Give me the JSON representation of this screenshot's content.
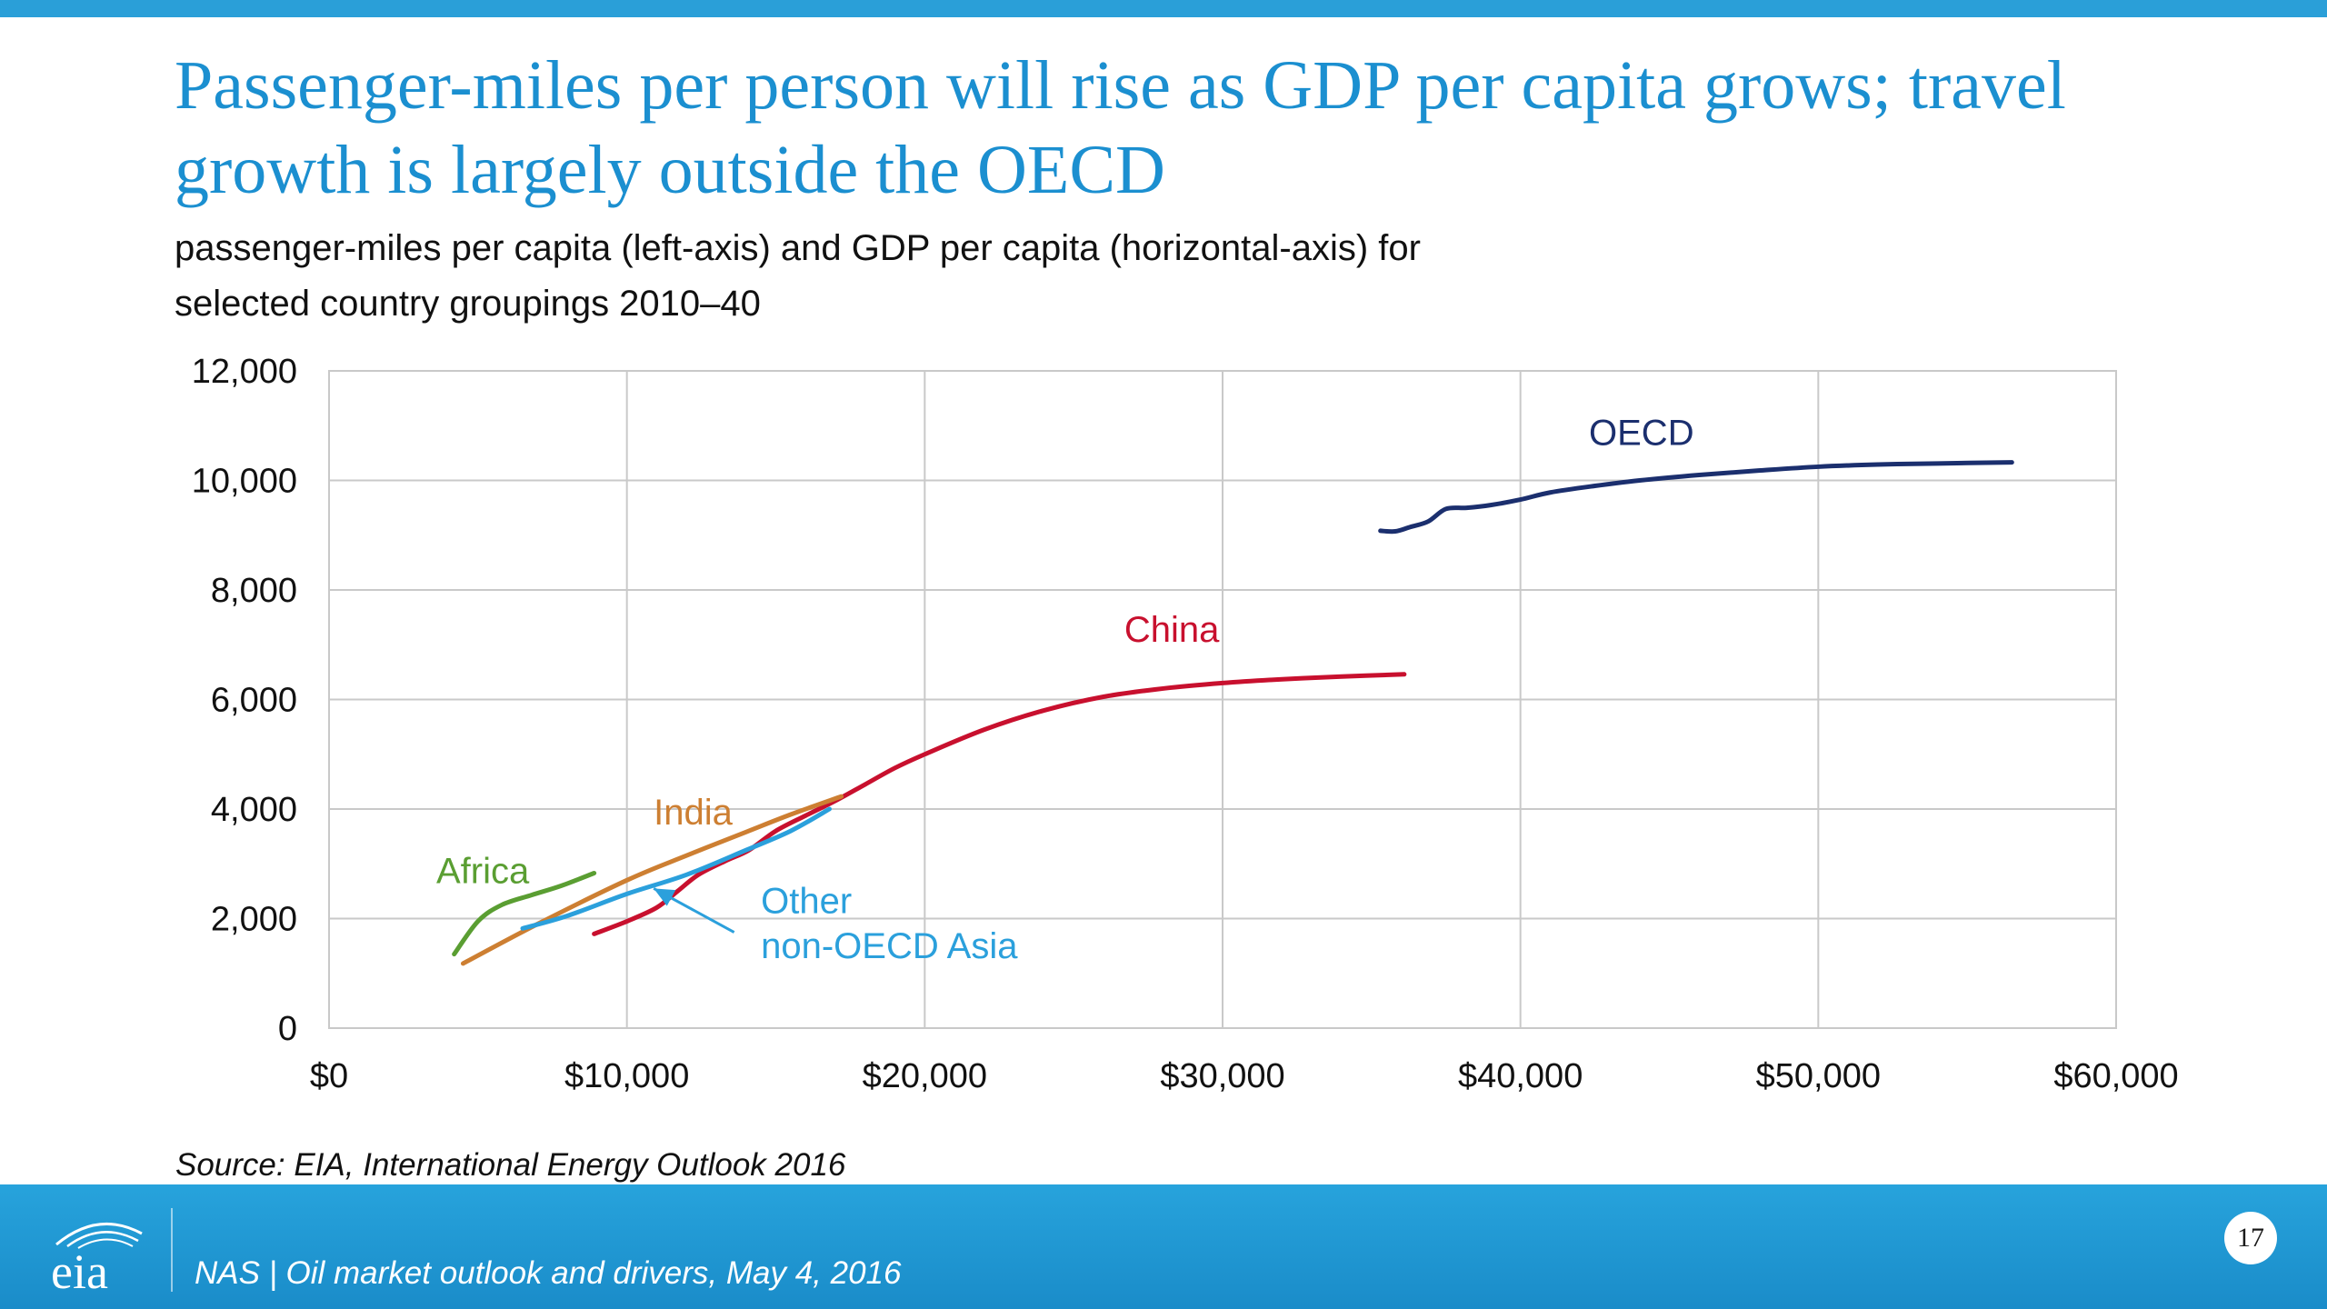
{
  "slide": {
    "title": "Passenger-miles per person will rise as GDP per capita grows; travel growth is largely outside the OECD",
    "subtitle_line1": "passenger-miles per capita (left-axis) and GDP per capita (horizontal-axis) for",
    "subtitle_line2": "selected country groupings 2010–40",
    "source": "Source:  EIA, International Energy Outlook 2016",
    "footer_text": "NAS | Oil market outlook and drivers, May 4, 2016",
    "page_number": "17",
    "logo_text": "eia"
  },
  "colors": {
    "accent": "#2a9fd8",
    "title": "#1b8fd0",
    "oecd": "#1b2f6e",
    "china": "#c8102e",
    "india": "#cd7f32",
    "africa": "#5a9e32",
    "other_asia": "#2ba0dc",
    "grid": "#c9c9c9"
  },
  "chart_data": {
    "type": "line",
    "title": "",
    "xlabel": "",
    "ylabel": "",
    "xlim": [
      0,
      60000
    ],
    "ylim": [
      0,
      12000
    ],
    "x_ticks": [
      0,
      10000,
      20000,
      30000,
      40000,
      50000,
      60000
    ],
    "x_tick_labels": [
      "$0",
      "$10,000",
      "$20,000",
      "$30,000",
      "$40,000",
      "$50,000",
      "$60,000"
    ],
    "y_ticks": [
      0,
      2000,
      4000,
      6000,
      8000,
      10000,
      12000
    ],
    "y_tick_labels": [
      "0",
      "2,000",
      "4,000",
      "6,000",
      "8,000",
      "10,000",
      "12,000"
    ],
    "grid": true,
    "series": [
      {
        "name": "OECD",
        "color": "#1b2f6e",
        "points": [
          [
            35300,
            9080
          ],
          [
            35800,
            9070
          ],
          [
            36300,
            9150
          ],
          [
            36900,
            9250
          ],
          [
            37500,
            9480
          ],
          [
            38200,
            9500
          ],
          [
            39000,
            9550
          ],
          [
            40000,
            9650
          ],
          [
            41000,
            9780
          ],
          [
            42500,
            9900
          ],
          [
            44000,
            10000
          ],
          [
            46000,
            10100
          ],
          [
            48000,
            10180
          ],
          [
            50000,
            10250
          ],
          [
            52000,
            10290
          ],
          [
            54000,
            10310
          ],
          [
            56500,
            10330
          ]
        ]
      },
      {
        "name": "China",
        "color": "#c8102e",
        "points": [
          [
            8900,
            1720
          ],
          [
            10000,
            1950
          ],
          [
            11000,
            2200
          ],
          [
            11700,
            2500
          ],
          [
            12400,
            2800
          ],
          [
            13300,
            3050
          ],
          [
            14100,
            3250
          ],
          [
            15000,
            3600
          ],
          [
            16000,
            3880
          ],
          [
            17000,
            4150
          ],
          [
            18000,
            4450
          ],
          [
            19000,
            4750
          ],
          [
            20000,
            5000
          ],
          [
            22000,
            5450
          ],
          [
            24000,
            5800
          ],
          [
            26000,
            6050
          ],
          [
            28000,
            6200
          ],
          [
            30000,
            6300
          ],
          [
            32000,
            6370
          ],
          [
            34000,
            6420
          ],
          [
            36100,
            6460
          ]
        ]
      },
      {
        "name": "India",
        "color": "#cd7f32",
        "points": [
          [
            4500,
            1180
          ],
          [
            7000,
            1900
          ],
          [
            10000,
            2700
          ],
          [
            12000,
            3150
          ],
          [
            14000,
            3580
          ],
          [
            15500,
            3900
          ],
          [
            17200,
            4230
          ]
        ]
      },
      {
        "name": "Africa",
        "color": "#5a9e32",
        "points": [
          [
            4200,
            1350
          ],
          [
            5000,
            1950
          ],
          [
            5800,
            2250
          ],
          [
            6800,
            2430
          ],
          [
            7800,
            2600
          ],
          [
            8900,
            2830
          ]
        ]
      },
      {
        "name": "Other non-OECD Asia",
        "color": "#2ba0dc",
        "points": [
          [
            6500,
            1820
          ],
          [
            8000,
            2050
          ],
          [
            10000,
            2450
          ],
          [
            12000,
            2800
          ],
          [
            14000,
            3250
          ],
          [
            15500,
            3600
          ],
          [
            16800,
            4000
          ]
        ]
      }
    ],
    "annotations": [
      {
        "text": "OECD",
        "x": 42300,
        "y": 10650,
        "color": "#1b2f6e"
      },
      {
        "text": "China",
        "x": 26700,
        "y": 7050,
        "color": "#c8102e"
      },
      {
        "text": "India",
        "x": 10900,
        "y": 3720,
        "color": "#cd7f32"
      },
      {
        "text": "Africa",
        "x": 3600,
        "y": 2650,
        "color": "#5a9e32"
      },
      {
        "text": "Other",
        "x": 14500,
        "y": 2100,
        "color": "#2ba0dc"
      },
      {
        "text": "non-OECD Asia",
        "x": 14500,
        "y": 1280,
        "color": "#2ba0dc"
      }
    ],
    "pointer": {
      "from": [
        13600,
        1750
      ],
      "to": [
        10900,
        2550
      ],
      "color": "#2ba0dc"
    }
  }
}
